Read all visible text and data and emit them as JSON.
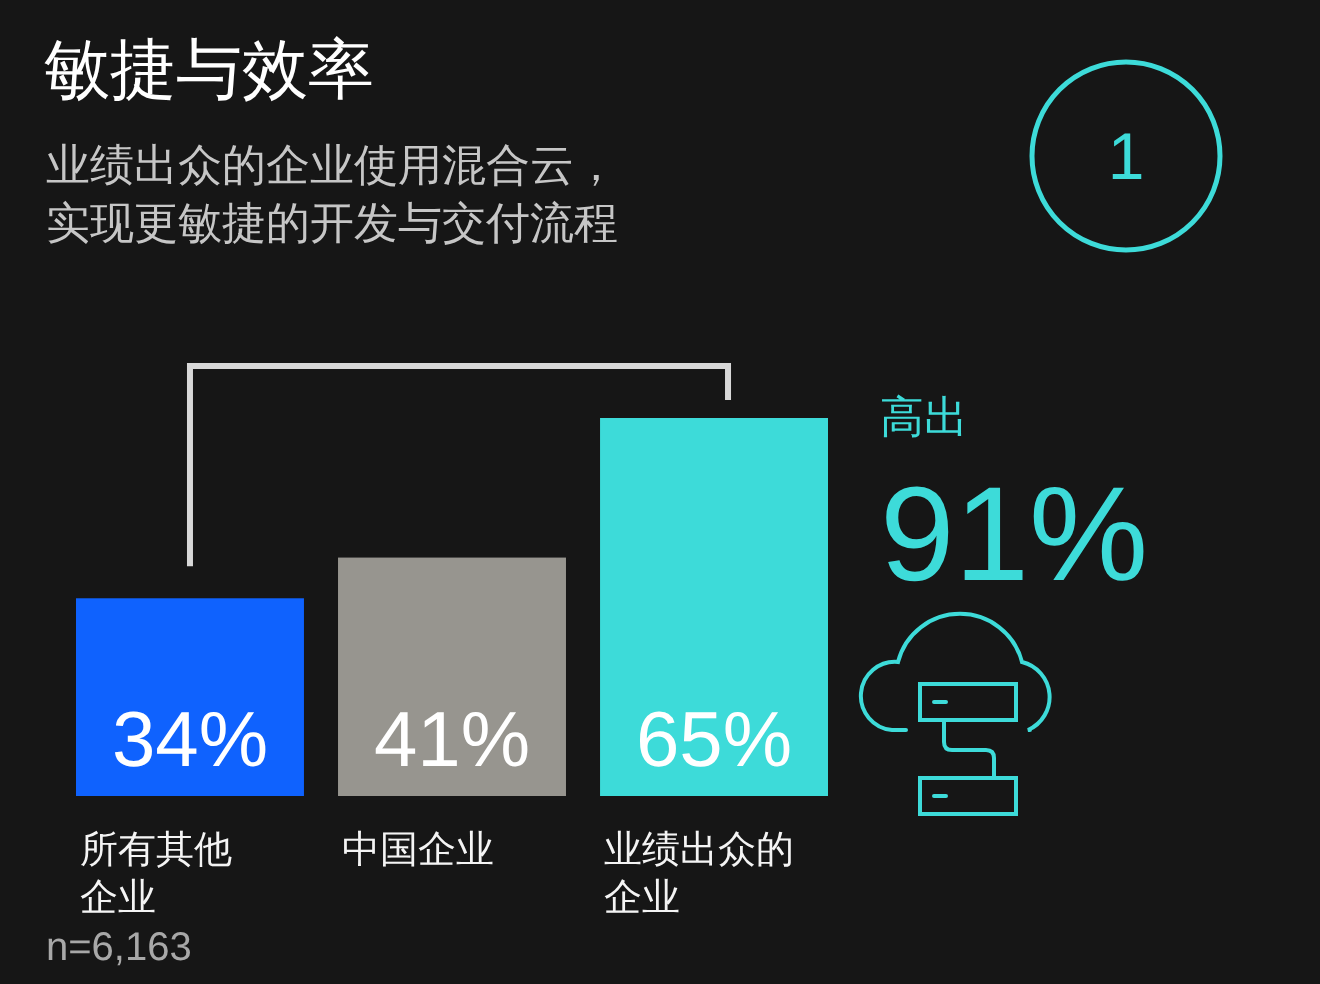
{
  "chart_data": {
    "type": "bar",
    "title": "敏捷与效率",
    "subtitle": "业绩出众的企业使用混合云，实现更敏捷的开发与交付流程",
    "categories": [
      "所有其他企业",
      "中国企业",
      "业绩出众的企业"
    ],
    "values": [
      34,
      41,
      65
    ],
    "value_labels": [
      "34%",
      "41%",
      "65%"
    ],
    "colors": [
      "#0f62fe",
      "#97958f",
      "#3ddbd9"
    ],
    "annotations": [
      "1",
      "高出",
      "91%",
      "n=6,163"
    ]
  }
}
